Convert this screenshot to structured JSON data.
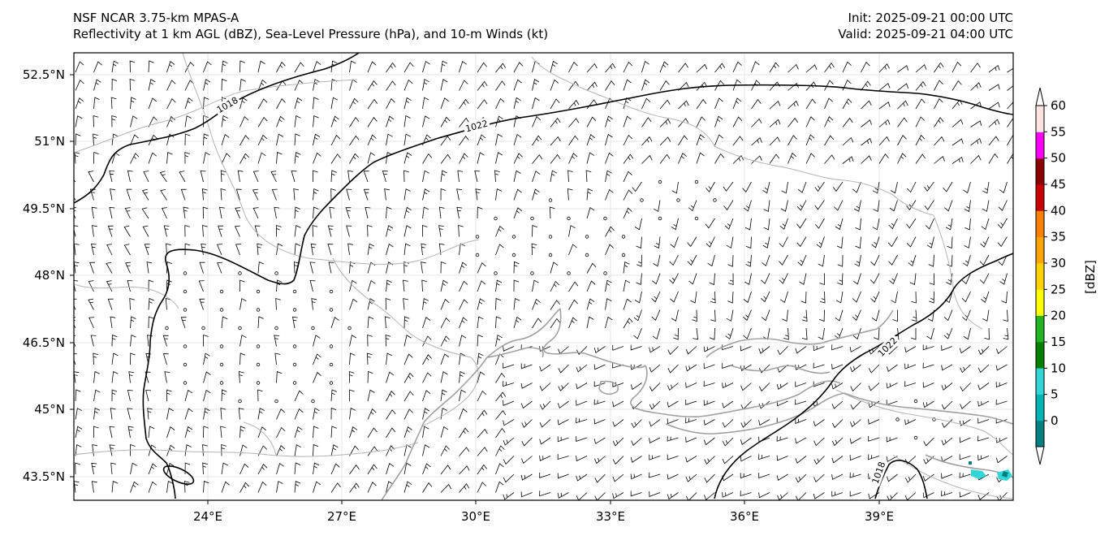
{
  "header": {
    "title_left_line1": "NSF NCAR 3.75-km MPAS-A",
    "title_left_line2": "Reflectivity at 1 km AGL (dBZ), Sea-Level Pressure (hPa), and 10-m Winds (kt)",
    "title_right_line1": "Init: 2025-09-21 00:00 UTC",
    "title_right_line2": "Valid: 2025-09-21 04:00 UTC"
  },
  "map": {
    "lon_range": [
      21,
      42
    ],
    "lat_range": [
      43,
      53
    ],
    "lat_ticks": [
      "52.5°N",
      "51°N",
      "49.5°N",
      "48°N",
      "46.5°N",
      "45°N",
      "43.5°N"
    ],
    "lon_ticks": [
      "24°E",
      "27°E",
      "30°E",
      "33°E",
      "36°E",
      "39°E"
    ],
    "isobar_labels": [
      "1018",
      "1022",
      "1022",
      "1018"
    ],
    "colors": {
      "coast": "#a0a0a0",
      "border": "#b4b4b4",
      "isobar": "#000000",
      "grid": "#e6e6e6"
    }
  },
  "colorbar": {
    "label": "[dBZ]",
    "ticks": [
      "0",
      "5",
      "10",
      "15",
      "20",
      "25",
      "30",
      "35",
      "40",
      "45",
      "50",
      "55",
      "60"
    ],
    "colors": [
      "#008080",
      "#00b4b4",
      "#33d6d6",
      "#008000",
      "#22b422",
      "#ffff00",
      "#ffd200",
      "#ffa500",
      "#ff7f00",
      "#c80000",
      "#8b0000",
      "#ff00ff",
      "#ffe4e1"
    ]
  }
}
